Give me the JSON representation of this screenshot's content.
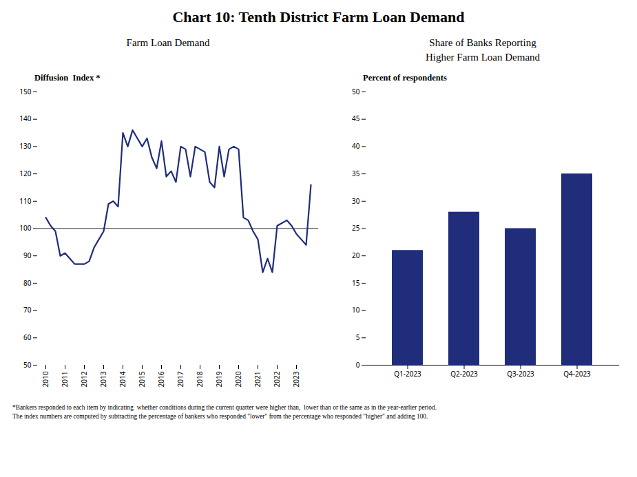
{
  "title": "Chart 10: Tenth District Farm Loan Demand",
  "annotations": [
    "*Bankers responded to each item by indicating  whether conditions during the current quarter were higher than,  lower than or the same as in the year-earlier period.\nThe index numbers are computed by subtracting the percentage of bankers who responded \"lower\" from the percentage who responded \"higher\" and adding 100."
  ],
  "chart_data": [
    {
      "type": "line",
      "subtitle": "Farm Loan Demand",
      "ylabel": "Diffusion  Index *",
      "categories": [
        "2010",
        null,
        null,
        null,
        "2011",
        null,
        null,
        null,
        "2012",
        null,
        null,
        null,
        "2013",
        null,
        null,
        null,
        "2014",
        null,
        null,
        null,
        "2015",
        null,
        null,
        null,
        "2016",
        null,
        null,
        null,
        "2017",
        null,
        null,
        null,
        "2018",
        null,
        null,
        null,
        "2019",
        null,
        null,
        null,
        "2020",
        null,
        null,
        null,
        "2021",
        null,
        null,
        null,
        "2022",
        null,
        null,
        null,
        "2023",
        null,
        null,
        null
      ],
      "values": [
        104,
        101,
        99,
        90,
        91,
        89,
        87,
        87,
        87,
        88,
        93,
        96,
        99,
        109,
        110,
        108,
        135,
        130,
        136,
        133,
        130,
        133,
        126,
        122,
        132,
        119,
        121,
        117,
        130,
        129,
        119,
        130,
        129,
        128,
        117,
        115,
        130,
        119,
        129,
        130,
        129,
        104,
        103,
        99,
        96,
        84,
        89,
        84,
        101,
        102,
        103,
        101,
        98,
        96,
        94,
        116
      ],
      "color": "#1F2D7A",
      "reference_line": 100,
      "ylim": [
        50,
        150
      ],
      "yticks": [
        50,
        60,
        70,
        80,
        90,
        100,
        110,
        120,
        130,
        140,
        150
      ]
    },
    {
      "type": "bar",
      "subtitle": "Share of Banks Reporting\nHigher Farm Loan Demand",
      "ylabel": "Percent of respondents",
      "categories": [
        "Q1-2023",
        "Q2-2023",
        "Q3-2023",
        "Q4-2023"
      ],
      "values": [
        21,
        28,
        25,
        35
      ],
      "color": "#1F2D7A",
      "ylim": [
        0,
        50
      ],
      "yticks": [
        0,
        5,
        10,
        15,
        20,
        25,
        30,
        35,
        40,
        45,
        50
      ]
    }
  ]
}
